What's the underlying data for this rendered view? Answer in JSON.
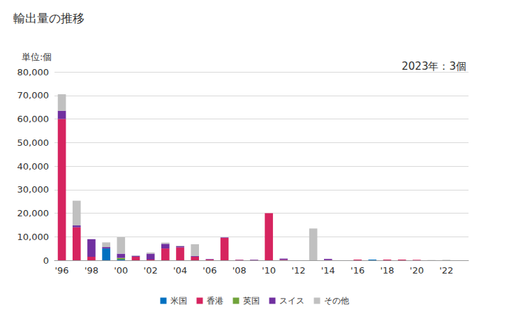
{
  "chart_data": {
    "type": "bar",
    "title": "輸出量の推移",
    "y_label": "単位:個",
    "annotation": "2023年：3個",
    "stacked": true,
    "grid": true,
    "legend": "bottom",
    "categories": [
      "'96",
      null,
      "'98",
      null,
      "'00",
      null,
      "'02",
      null,
      "'04",
      null,
      "'06",
      null,
      "'08",
      null,
      "'10",
      null,
      "'12",
      null,
      "'14",
      null,
      "'16",
      null,
      "'18",
      null,
      "'20",
      null,
      "'22",
      null
    ],
    "ylim": [
      0,
      80000
    ],
    "yticks": [
      0,
      {
        "value": 10000,
        "label": "10,000"
      },
      {
        "value": 20000,
        "label": "20,000"
      },
      {
        "value": 30000,
        "label": "30,000"
      },
      {
        "value": 40000,
        "label": "40,000"
      },
      {
        "value": 50000,
        "label": "50,000"
      },
      {
        "value": 60000,
        "label": "60,000"
      },
      {
        "value": 70000,
        "label": "70,000"
      },
      {
        "value": 80000,
        "label": "80,000"
      }
    ],
    "series": [
      {
        "name": "米国",
        "color": "#0070c0",
        "values": [
          0,
          0,
          0,
          5000,
          300,
          0,
          0,
          0,
          0,
          0,
          0,
          0,
          0,
          0,
          0,
          0,
          0,
          0,
          0,
          0,
          0,
          300,
          0,
          0,
          0,
          0,
          0,
          0
        ]
      },
      {
        "name": "香港",
        "color": "#d6245f",
        "values": [
          60000,
          14000,
          1500,
          0,
          0,
          1500,
          300,
          5000,
          5500,
          1500,
          300,
          9500,
          200,
          100,
          20000,
          200,
          0,
          0,
          100,
          0,
          300,
          0,
          300,
          300,
          200,
          0,
          0,
          0
        ]
      },
      {
        "name": "英国",
        "color": "#70a33a",
        "values": [
          0,
          0,
          0,
          0,
          700,
          0,
          0,
          0,
          0,
          0,
          0,
          0,
          0,
          0,
          0,
          0,
          0,
          0,
          0,
          0,
          0,
          0,
          0,
          0,
          0,
          0,
          0,
          0
        ]
      },
      {
        "name": "スイス",
        "color": "#7030a0",
        "values": [
          3500,
          800,
          7500,
          600,
          1800,
          400,
          2500,
          2000,
          500,
          300,
          200,
          200,
          100,
          200,
          0,
          500,
          0,
          0,
          500,
          0,
          0,
          0,
          0,
          0,
          0,
          0,
          0,
          0
        ]
      },
      {
        "name": "その他",
        "color": "#c0c0c0",
        "values": [
          7000,
          10500,
          0,
          2000,
          7000,
          200,
          500,
          500,
          200,
          5000,
          0,
          0,
          0,
          0,
          0,
          0,
          0,
          13500,
          0,
          0,
          0,
          0,
          0,
          0,
          0,
          100,
          200,
          3
        ]
      }
    ]
  }
}
